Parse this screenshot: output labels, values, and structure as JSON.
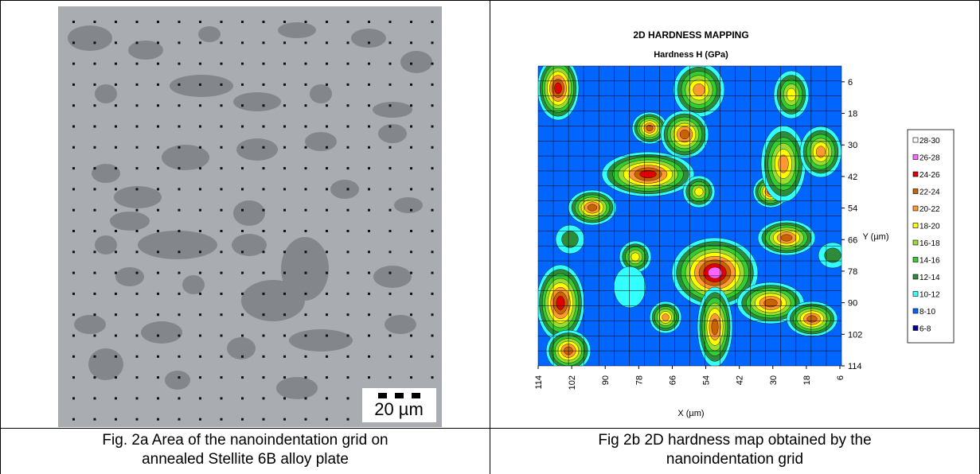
{
  "figure_a": {
    "scale_bar": "20 µm",
    "caption": [
      "Fig. 2a Area of the nanoindentation grid on",
      "annealed Stellite 6B alloy plate"
    ]
  },
  "figure_b": {
    "chart_data": {
      "type": "contour",
      "title": "2D HARDNESS MAPPING",
      "subtitle": "Hardness H (GPa)",
      "x_label": "X (µm)",
      "y_label": "Y (µm)",
      "xlim": [
        114,
        6
      ],
      "xticks": [
        114,
        102,
        90,
        78,
        66,
        54,
        42,
        30,
        18,
        6
      ],
      "ylim": [
        0,
        114
      ],
      "yticks": [
        6,
        18,
        30,
        42,
        54,
        66,
        78,
        90,
        102,
        114
      ],
      "y_inverted": true,
      "grid": true,
      "legend": [
        {
          "label": "28-30",
          "color": "#ffffff"
        },
        {
          "label": "26-28",
          "color": "#ff66ff"
        },
        {
          "label": "24-26",
          "color": "#e00000"
        },
        {
          "label": "22-24",
          "color": "#c86400"
        },
        {
          "label": "20-22",
          "color": "#ff9933"
        },
        {
          "label": "18-20",
          "color": "#ffff00"
        },
        {
          "label": "16-18",
          "color": "#99dd33"
        },
        {
          "label": "14-16",
          "color": "#33cc33"
        },
        {
          "label": "12-14",
          "color": "#2e8b3a"
        },
        {
          "label": "10-12",
          "color": "#33ffff"
        },
        {
          "label": "8-10",
          "color": "#0066ff"
        },
        {
          "label": "6-8",
          "color": "#000099"
        }
      ]
    },
    "caption": [
      "Fig 2b 2D hardness map obtained by the",
      "nanoindentation grid"
    ]
  }
}
